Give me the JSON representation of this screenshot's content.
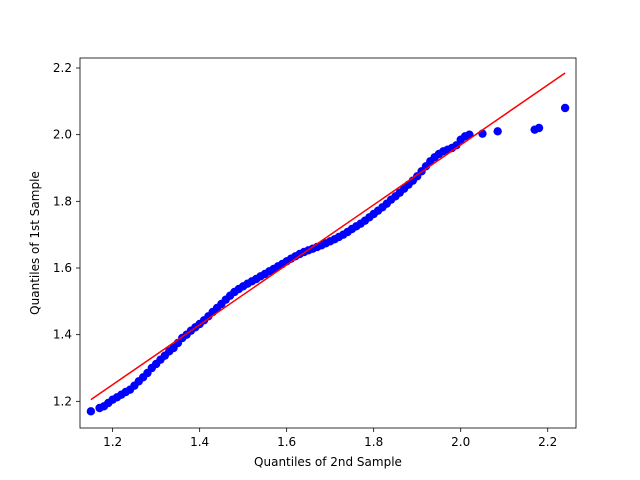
{
  "chart_data": {
    "type": "scatter",
    "title": "",
    "xlabel": "Quantiles of 2nd Sample",
    "ylabel": "Quantiles of 1st Sample",
    "xlim": [
      1.125,
      2.265
    ],
    "ylim": [
      1.12,
      2.23
    ],
    "xticks": [
      1.2,
      1.4,
      1.6,
      1.8,
      2.0,
      2.2
    ],
    "xtick_labels": [
      "1.2",
      "1.4",
      "1.6",
      "1.8",
      "2.0",
      "2.2"
    ],
    "yticks": [
      1.2,
      1.4,
      1.6,
      1.8,
      2.0,
      2.2
    ],
    "ytick_labels": [
      "1.2",
      "1.4",
      "1.6",
      "1.8",
      "2.0",
      "2.2"
    ],
    "grid": false,
    "point_color": "#0000ff",
    "line_color": "#ff0000",
    "reference_line": {
      "x": [
        1.15,
        2.24
      ],
      "y": [
        1.205,
        2.185
      ]
    },
    "series": [
      {
        "x": [
          1.15,
          1.17,
          1.18,
          1.19,
          1.2,
          1.21,
          1.22,
          1.23,
          1.24,
          1.25,
          1.26,
          1.27,
          1.28,
          1.29,
          1.3,
          1.31,
          1.32,
          1.33,
          1.34,
          1.35,
          1.36,
          1.37,
          1.38,
          1.39,
          1.4,
          1.41,
          1.42,
          1.43,
          1.44,
          1.45,
          1.46,
          1.47,
          1.48,
          1.49,
          1.5,
          1.51,
          1.52,
          1.53,
          1.54,
          1.55,
          1.56,
          1.57,
          1.58,
          1.59,
          1.6,
          1.61,
          1.62,
          1.63,
          1.64,
          1.65,
          1.66,
          1.67,
          1.68,
          1.69,
          1.7,
          1.71,
          1.72,
          1.73,
          1.74,
          1.75,
          1.76,
          1.77,
          1.78,
          1.79,
          1.8,
          1.81,
          1.82,
          1.83,
          1.84,
          1.85,
          1.86,
          1.87,
          1.88,
          1.89,
          1.9,
          1.91,
          1.92,
          1.93,
          1.94,
          1.95,
          1.96,
          1.97,
          1.98,
          1.99,
          2.0,
          2.01,
          2.02,
          2.05,
          2.085,
          2.17,
          2.18,
          2.24
        ],
        "y": [
          1.17,
          1.18,
          1.185,
          1.195,
          1.205,
          1.212,
          1.22,
          1.228,
          1.235,
          1.247,
          1.26,
          1.272,
          1.285,
          1.3,
          1.312,
          1.325,
          1.337,
          1.35,
          1.36,
          1.375,
          1.39,
          1.4,
          1.412,
          1.422,
          1.432,
          1.443,
          1.455,
          1.468,
          1.48,
          1.492,
          1.505,
          1.517,
          1.528,
          1.537,
          1.545,
          1.553,
          1.56,
          1.567,
          1.575,
          1.582,
          1.59,
          1.597,
          1.605,
          1.612,
          1.62,
          1.628,
          1.635,
          1.642,
          1.648,
          1.653,
          1.658,
          1.663,
          1.668,
          1.674,
          1.68,
          1.686,
          1.693,
          1.7,
          1.708,
          1.717,
          1.725,
          1.733,
          1.742,
          1.752,
          1.762,
          1.772,
          1.782,
          1.793,
          1.805,
          1.815,
          1.826,
          1.838,
          1.85,
          1.862,
          1.875,
          1.89,
          1.905,
          1.92,
          1.932,
          1.942,
          1.95,
          1.955,
          1.96,
          1.968,
          1.985,
          1.995,
          2.0,
          2.003,
          2.01,
          2.015,
          2.02,
          2.08
        ]
      }
    ]
  }
}
